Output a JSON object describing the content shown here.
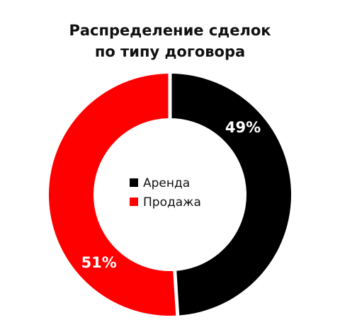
{
  "chart_data": {
    "type": "donut",
    "title": "Распределение сделок по типу договора",
    "categories": [
      "Аренда",
      "Продажа"
    ],
    "values": [
      49,
      51
    ],
    "value_labels": [
      "49%",
      "51%"
    ],
    "colors": [
      "#000000",
      "#ff0000"
    ]
  }
}
